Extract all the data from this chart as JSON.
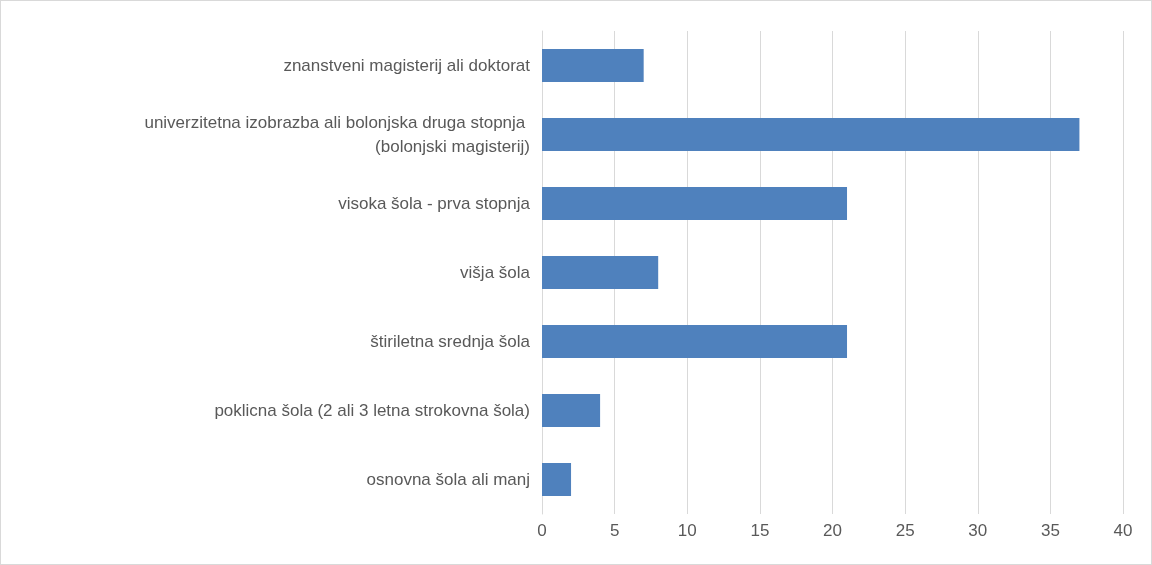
{
  "chart_data": {
    "type": "bar",
    "orientation": "horizontal",
    "categories": [
      "znanstveni magisterij ali doktorat",
      "univerzitetna izobrazba ali bolonjska druga stopnja (bolonjski magisterij)",
      "visoka šola - prva stopnja",
      "višja šola",
      "štiriletna srednja šola",
      "poklicna šola (2 ali 3 letna strokovna šola)",
      "osnovna šola ali manj"
    ],
    "values": [
      7,
      37,
      21,
      8,
      21,
      4,
      2
    ],
    "color": "#4f81bd",
    "xlim": [
      0,
      40
    ],
    "xticks": [
      0,
      5,
      10,
      15,
      20,
      25,
      30,
      35,
      40
    ],
    "grid": "x"
  }
}
